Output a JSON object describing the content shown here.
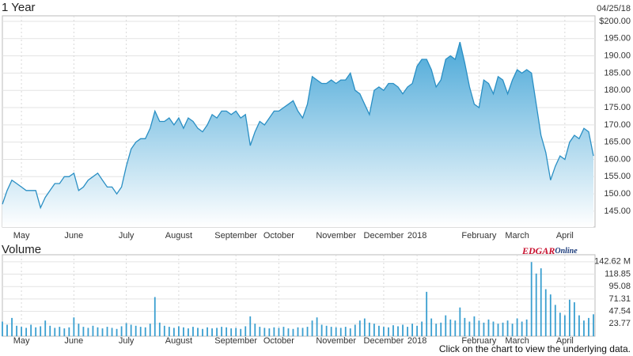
{
  "chart_data": [
    {
      "type": "area",
      "title": "1 Year",
      "subtitle": "04/25/18",
      "color": "#2a8fc4",
      "grid": true,
      "categories": [
        null,
        null,
        null,
        null,
        "May",
        null,
        null,
        null,
        null,
        null,
        null,
        null,
        null,
        null,
        null,
        "June",
        null,
        null,
        null,
        null,
        null,
        null,
        null,
        null,
        null,
        null,
        "July",
        null,
        null,
        null,
        null,
        null,
        null,
        null,
        null,
        null,
        null,
        "August",
        null,
        null,
        null,
        null,
        null,
        null,
        null,
        null,
        null,
        null,
        null,
        "September",
        null,
        null,
        null,
        null,
        null,
        null,
        null,
        null,
        "October",
        null,
        null,
        null,
        null,
        null,
        null,
        null,
        null,
        null,
        null,
        null,
        "November",
        null,
        null,
        null,
        null,
        null,
        null,
        null,
        null,
        null,
        "December",
        null,
        null,
        null,
        null,
        null,
        null,
        "2018",
        null,
        null,
        null,
        null,
        null,
        null,
        null,
        null,
        null,
        null,
        null,
        null,
        "February",
        null,
        null,
        null,
        null,
        null,
        null,
        null,
        "March",
        null,
        null,
        null,
        null,
        null,
        null,
        null,
        null,
        null,
        "April",
        null,
        null,
        null,
        null,
        null,
        null
      ],
      "values": [
        147,
        151,
        154,
        153,
        152,
        151,
        151,
        151,
        146,
        149,
        151,
        153,
        153,
        155,
        155,
        156,
        151,
        152,
        154,
        155,
        156,
        154,
        152,
        152,
        150,
        152,
        158,
        163,
        165,
        166,
        166,
        169,
        174,
        171,
        171,
        172,
        170,
        172,
        169,
        172,
        171,
        169,
        168,
        170,
        173,
        172,
        174,
        174,
        173,
        174,
        172,
        173,
        164,
        168,
        171,
        170,
        172,
        174,
        174,
        175,
        176,
        177,
        174,
        172,
        176,
        184,
        183,
        182,
        182,
        183,
        182,
        183,
        183,
        185,
        180,
        179,
        176,
        173,
        180,
        181,
        180,
        182,
        182,
        181,
        179,
        181,
        182,
        187,
        189,
        189,
        186,
        181,
        183,
        189,
        190,
        189,
        194,
        188,
        181,
        176,
        175,
        183,
        182,
        179,
        184,
        183,
        179,
        183,
        186,
        185,
        186,
        185,
        176,
        167,
        162,
        154,
        158,
        161,
        160,
        165,
        167,
        166,
        169,
        168,
        161
      ],
      "ylim": [
        140.4,
        201.6
      ],
      "yticks": [
        {
          "value": 145,
          "label": "145.00"
        },
        {
          "value": 150,
          "label": "150.00"
        },
        {
          "value": 155,
          "label": "155.00"
        },
        {
          "value": 160,
          "label": "160.00"
        },
        {
          "value": 165,
          "label": "165.00"
        },
        {
          "value": 170,
          "label": "170.00"
        },
        {
          "value": 175,
          "label": "175.00"
        },
        {
          "value": 180,
          "label": "180.00"
        },
        {
          "value": 185,
          "label": "185.00"
        },
        {
          "value": 190,
          "label": "190.00"
        },
        {
          "value": 195,
          "label": "195.00"
        },
        {
          "value": 200,
          "label": "$200.00"
        }
      ]
    },
    {
      "type": "bar",
      "title": "Volume",
      "color": "#3a9fd0",
      "grid": true,
      "categories": [
        null,
        null,
        null,
        null,
        "May",
        null,
        null,
        null,
        null,
        null,
        null,
        null,
        null,
        null,
        null,
        "June",
        null,
        null,
        null,
        null,
        null,
        null,
        null,
        null,
        null,
        null,
        "July",
        null,
        null,
        null,
        null,
        null,
        null,
        null,
        null,
        null,
        null,
        "August",
        null,
        null,
        null,
        null,
        null,
        null,
        null,
        null,
        null,
        null,
        null,
        "September",
        null,
        null,
        null,
        null,
        null,
        null,
        null,
        null,
        "October",
        null,
        null,
        null,
        null,
        null,
        null,
        null,
        null,
        null,
        null,
        null,
        "November",
        null,
        null,
        null,
        null,
        null,
        null,
        null,
        null,
        null,
        "December",
        null,
        null,
        null,
        null,
        null,
        null,
        "2018",
        null,
        null,
        null,
        null,
        null,
        null,
        null,
        null,
        null,
        null,
        null,
        null,
        "February",
        null,
        null,
        null,
        null,
        null,
        null,
        null,
        "March",
        null,
        null,
        null,
        null,
        null,
        null,
        null,
        null,
        null,
        "April",
        null,
        null,
        null,
        null,
        null,
        null
      ],
      "values": [
        28,
        22,
        35,
        20,
        18,
        16,
        22,
        17,
        19,
        30,
        20,
        16,
        18,
        15,
        17,
        36,
        24,
        18,
        16,
        20,
        17,
        15,
        18,
        16,
        14,
        19,
        25,
        22,
        20,
        18,
        17,
        24,
        75,
        26,
        20,
        18,
        16,
        19,
        17,
        15,
        18,
        16,
        14,
        17,
        15,
        16,
        18,
        17,
        15,
        16,
        14,
        19,
        38,
        24,
        18,
        16,
        15,
        17,
        16,
        18,
        15,
        14,
        17,
        16,
        18,
        30,
        36,
        22,
        20,
        18,
        17,
        16,
        18,
        15,
        22,
        30,
        34,
        26,
        24,
        20,
        18,
        17,
        21,
        19,
        22,
        18,
        24,
        20,
        28,
        85,
        34,
        24,
        26,
        40,
        32,
        30,
        55,
        35,
        28,
        38,
        30,
        26,
        32,
        28,
        24,
        26,
        30,
        24,
        34,
        28,
        32,
        142,
        120,
        130,
        90,
        80,
        60,
        45,
        40,
        70,
        65,
        40,
        30,
        35,
        42
      ],
      "ylim": [
        0,
        156
      ],
      "yticks": [
        23.77,
        47.54,
        71.31,
        95.08,
        118.85,
        {
          "value": 142.62,
          "label": "142.62 M"
        }
      ]
    }
  ],
  "brand": {
    "main": "EDGAR",
    "sub": "Online"
  },
  "footer": "Click on the chart to view the underlying data."
}
